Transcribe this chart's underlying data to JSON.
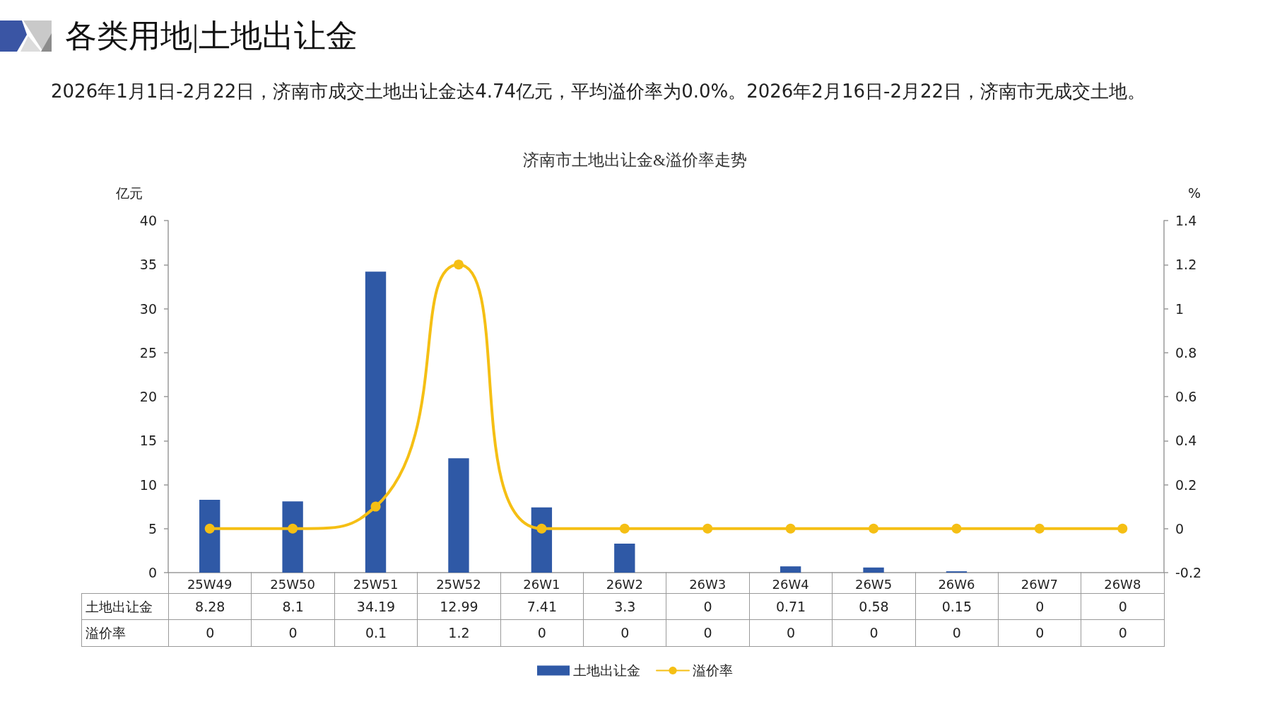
{
  "chart_data": {
    "type": "bar",
    "title": "济南市土地出让金&溢价率走势",
    "annotations": [
      "各类用地|土地出让金",
      "2026年1月1日-2月22日，济南市成交土地出让金达4.74亿元，平均溢价率为0.0%。2026年2月16日-2月22日，济南市无成交土地。"
    ],
    "ylabel": "亿元",
    "y2label": "%",
    "categories": [
      "25W49",
      "25W50",
      "25W51",
      "25W52",
      "26W1",
      "26W2",
      "26W3",
      "26W4",
      "26W5",
      "26W6",
      "26W7",
      "26W8"
    ],
    "series": [
      {
        "name": "土地出让金",
        "type": "bar",
        "color": "#2f59a6",
        "values": [
          8.28,
          8.1,
          34.19,
          12.99,
          7.41,
          3.3,
          0,
          0.71,
          0.58,
          0.15,
          0,
          0
        ]
      },
      {
        "name": "溢价率",
        "type": "line",
        "axis": "y2",
        "color": "#f5bf14",
        "marker": "circle",
        "line_style": "solid",
        "values": [
          0,
          0,
          0.1,
          1.2,
          0,
          0,
          0,
          0,
          0,
          0,
          0,
          0
        ]
      }
    ],
    "ylim": [
      0,
      40
    ],
    "yticks": [
      0,
      5,
      10,
      15,
      20,
      25,
      30,
      35,
      40
    ],
    "y2lim": [
      -0.2,
      1.4
    ],
    "y2ticks": [
      -0.2,
      0,
      0.2,
      0.4,
      0.6,
      0.8,
      1,
      1.2,
      1.4
    ],
    "legend": "bottom",
    "data_labels": true
  }
}
